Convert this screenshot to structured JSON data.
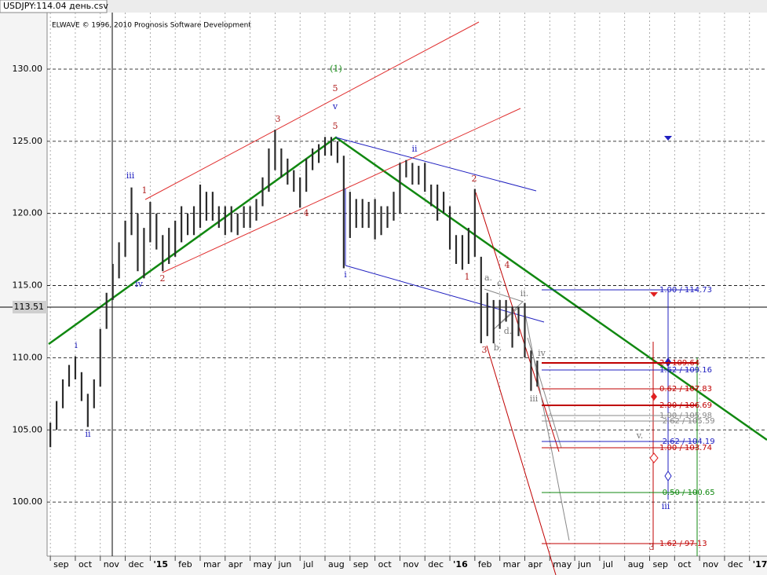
{
  "window_title": "USDJPY:114.04 день.csv",
  "chart_data": {
    "type": "ohlc",
    "watermark": "ELWAVE © 1996, 2010 Prognosis Software Development",
    "color": "#2b2b2b",
    "x": [
      0,
      0.25,
      0.5,
      0.75,
      1,
      1.25,
      1.5,
      1.75,
      2,
      2.25,
      2.5,
      2.75,
      3,
      3.25,
      3.5,
      3.75,
      4,
      4.25,
      4.5,
      4.75,
      5,
      5.25,
      5.5,
      5.75,
      6,
      6.25,
      6.5,
      6.75,
      7,
      7.25,
      7.5,
      7.75,
      8,
      8.25,
      8.5,
      8.75,
      9,
      9.25,
      9.5,
      9.75,
      10,
      10.25,
      10.5,
      10.75,
      11,
      11.25,
      11.5,
      11.75,
      12,
      12.25,
      12.5,
      12.75,
      13,
      13.25,
      13.5,
      13.75,
      14,
      14.25,
      14.5,
      14.75,
      15,
      15.25,
      15.5,
      15.75,
      16,
      16.25,
      16.5,
      16.75,
      17,
      17.25,
      17.5,
      17.75,
      18,
      18.25,
      18.5,
      18.75,
      19,
      19.25,
      19.5
    ],
    "high": [
      105.5,
      107,
      108.5,
      109.5,
      110.1,
      109,
      107.5,
      108.5,
      112,
      114.5,
      116.5,
      118,
      119.5,
      121.8,
      120,
      119,
      120.8,
      120,
      118.5,
      119,
      119.5,
      120.5,
      120,
      120.5,
      122,
      121.5,
      121.5,
      120.5,
      120.5,
      120.5,
      120,
      120.5,
      120.5,
      121,
      122.5,
      124.5,
      125.8,
      124.5,
      123.8,
      123,
      122.5,
      123.8,
      124.5,
      124.8,
      125.3,
      125.3,
      125,
      124,
      121.5,
      121,
      121,
      120.8,
      121,
      120.5,
      120.5,
      121.5,
      123.5,
      123.7,
      123.5,
      123.3,
      123.5,
      122,
      122,
      121.5,
      120.5,
      118.5,
      118.5,
      119,
      121.7,
      117,
      114.5,
      114,
      114,
      114,
      113.5,
      113.5,
      113.8,
      110.5,
      109.8
    ],
    "low": [
      103.8,
      105,
      106.5,
      108,
      108.5,
      107,
      105.2,
      106.5,
      108,
      112,
      114,
      115.5,
      117,
      118.5,
      116,
      115.5,
      118,
      117.5,
      116,
      116.5,
      117,
      118,
      118.5,
      118.5,
      119,
      119.5,
      119.5,
      119,
      118.5,
      118.7,
      118.5,
      119,
      119,
      119.5,
      120.5,
      121.5,
      123,
      122.5,
      122,
      121.5,
      120.4,
      121.5,
      123,
      123.5,
      124,
      124,
      123.5,
      116.2,
      118.3,
      119,
      119,
      119,
      118.2,
      118.5,
      119,
      119.5,
      120,
      122.5,
      122,
      122,
      121.5,
      120.5,
      119.5,
      120,
      117.5,
      116.5,
      116.1,
      116.5,
      117,
      111,
      111.5,
      111,
      112,
      112.5,
      110.7,
      111.5,
      110,
      107.7,
      108
    ],
    "xlim": [
      -0.13,
      28.7
    ],
    "xticks": [
      {
        "value": 0,
        "label": "sep"
      },
      {
        "value": 1,
        "label": "oct"
      },
      {
        "value": 2,
        "label": "nov"
      },
      {
        "value": 3,
        "label": "dec"
      },
      {
        "value": 4,
        "label": "'15"
      },
      {
        "value": 5,
        "label": "feb"
      },
      {
        "value": 6,
        "label": "mar"
      },
      {
        "value": 7,
        "label": "apr"
      },
      {
        "value": 8,
        "label": "may"
      },
      {
        "value": 9,
        "label": "jun"
      },
      {
        "value": 10,
        "label": "jul"
      },
      {
        "value": 11,
        "label": "aug"
      },
      {
        "value": 12,
        "label": "sep"
      },
      {
        "value": 13,
        "label": "oct"
      },
      {
        "value": 14,
        "label": "nov"
      },
      {
        "value": 15,
        "label": "dec"
      },
      {
        "value": 16,
        "label": "'16"
      },
      {
        "value": 17,
        "label": "feb"
      },
      {
        "value": 18,
        "label": "mar"
      },
      {
        "value": 19,
        "label": "apr"
      },
      {
        "value": 20,
        "label": "may"
      },
      {
        "value": 21,
        "label": "jun"
      },
      {
        "value": 22,
        "label": "jul"
      },
      {
        "value": 23,
        "label": "aug"
      },
      {
        "value": 24,
        "label": "sep"
      },
      {
        "value": 25,
        "label": "oct"
      },
      {
        "value": 26,
        "label": "nov"
      },
      {
        "value": 27,
        "label": "dec"
      },
      {
        "value": 28,
        "label": "'17"
      }
    ],
    "ylim": [
      96.25,
      133.92
    ],
    "yticks": [
      {
        "value": 100,
        "label": "100.00"
      },
      {
        "value": 105,
        "label": "105.00"
      },
      {
        "value": 110,
        "label": "110.00"
      },
      {
        "value": 115,
        "label": "115.00"
      },
      {
        "value": 120,
        "label": "120.00"
      },
      {
        "value": 125,
        "label": "125.00"
      },
      {
        "value": 130,
        "label": "130.00"
      }
    ],
    "current_price": 113.51,
    "grid": true,
    "wave_labels": [
      "(1)",
      "5",
      "v",
      "5",
      "3",
      "4",
      "iii",
      "1",
      "2",
      "iv",
      "i",
      "ii",
      "i",
      "ii",
      "2",
      "1",
      "4",
      "3",
      "a.",
      "b.",
      "c.",
      "d.",
      "ii.",
      "iii",
      "iv",
      "v.",
      "iii",
      "3"
    ],
    "fib_labels": [
      "1.00 / 114.73",
      "2 / 109.64",
      "1.62 / 109.16",
      "0.62 / 107.83",
      "2.00 / 106.69",
      "1.00 / 105.98",
      "-2.62 / 105.59",
      "-2.62 / 104.19",
      "1.00 / 103.74",
      "-0.50 / 100.65",
      "1.62 / 97.13"
    ]
  }
}
